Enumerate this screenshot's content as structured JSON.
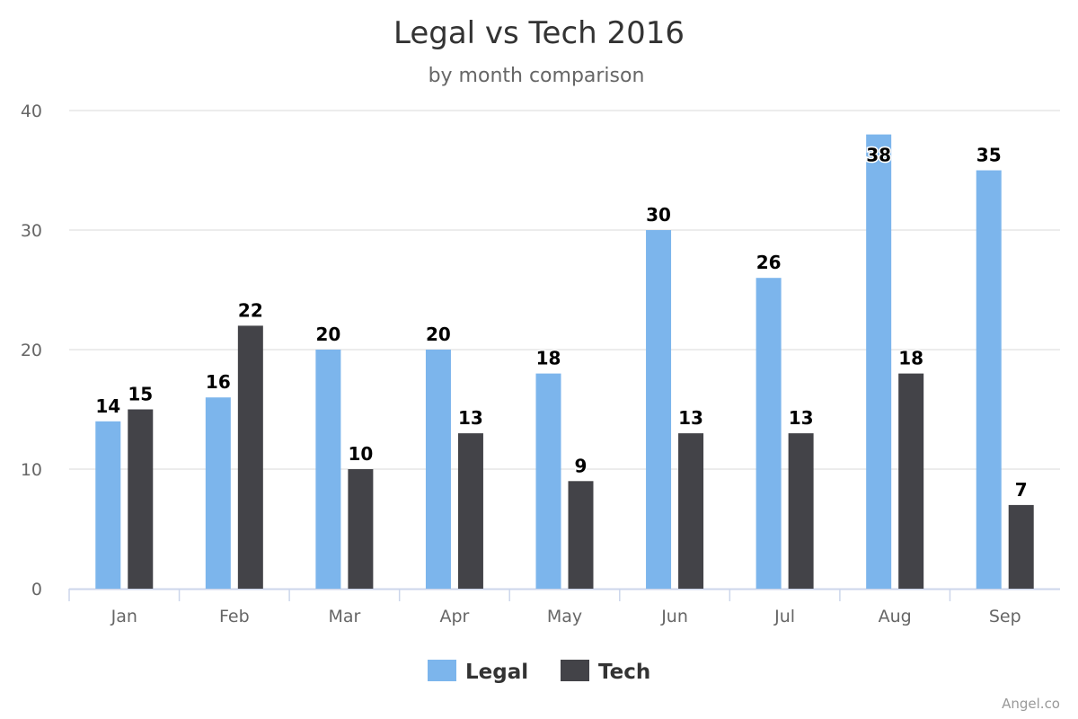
{
  "chart_data": {
    "type": "bar",
    "title": "Legal vs Tech 2016",
    "subtitle": "by month comparison",
    "categories": [
      "Jan",
      "Feb",
      "Mar",
      "Apr",
      "May",
      "Jun",
      "Jul",
      "Aug",
      "Sep"
    ],
    "series": [
      {
        "name": "Legal",
        "color": "#7cb5ec",
        "values": [
          14,
          16,
          20,
          20,
          18,
          30,
          26,
          38,
          35
        ]
      },
      {
        "name": "Tech",
        "color": "#434348",
        "values": [
          15,
          22,
          10,
          13,
          9,
          13,
          13,
          18,
          7
        ]
      }
    ],
    "ylim": [
      0,
      40
    ],
    "yticks": [
      0,
      10,
      20,
      30,
      40
    ],
    "grid": true,
    "legend": "bottom-center",
    "data_labels": true,
    "xlabel": "",
    "ylabel": ""
  },
  "credits": "Angel.co"
}
